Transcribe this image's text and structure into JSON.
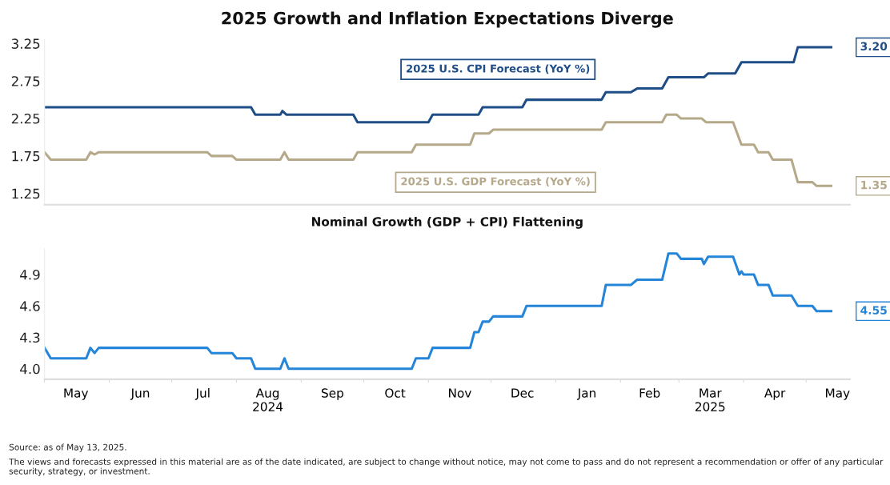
{
  "chart_data": [
    {
      "type": "line",
      "title": "2025 Growth and Inflation Expectations Diverge",
      "xlim": [
        "2024-05-01",
        "2025-05-22"
      ],
      "ylim": [
        1.1,
        3.3
      ],
      "yticks": [
        {
          "value": 1.25,
          "label": "1.25"
        },
        1.75,
        2.25,
        2.75,
        3.25
      ],
      "tick_labels": "y",
      "grid": false,
      "legend": false,
      "line_style": "solid",
      "marker": "none",
      "series": [
        {
          "name": "2025 U.S. CPI Forecast (YoY %)",
          "color": "#1f4e87",
          "x": [
            "2024-05-01",
            "2024-08-08",
            "2024-08-10",
            "2024-08-22",
            "2024-08-23",
            "2024-08-25",
            "2024-09-26",
            "2024-09-28",
            "2024-11-01",
            "2024-11-03",
            "2024-11-25",
            "2024-11-27",
            "2024-12-16",
            "2024-12-18",
            "2025-01-23",
            "2025-01-25",
            "2025-02-06",
            "2025-02-09",
            "2025-02-21",
            "2025-02-24",
            "2025-03-13",
            "2025-03-15",
            "2025-03-28",
            "2025-03-31",
            "2025-04-25",
            "2025-04-27",
            "2025-05-13"
          ],
          "values": [
            2.4,
            2.4,
            2.3,
            2.3,
            2.35,
            2.3,
            2.3,
            2.2,
            2.2,
            2.3,
            2.3,
            2.4,
            2.4,
            2.5,
            2.5,
            2.6,
            2.6,
            2.65,
            2.65,
            2.8,
            2.8,
            2.85,
            2.85,
            3.0,
            3.0,
            3.2,
            3.2
          ]
        },
        {
          "name": "2025 U.S. GDP Forecast (YoY %)",
          "color": "#b5a98a",
          "x": [
            "2024-05-01",
            "2024-05-04",
            "2024-05-21",
            "2024-05-23",
            "2024-05-25",
            "2024-05-27",
            "2024-07-18",
            "2024-07-20",
            "2024-07-30",
            "2024-08-01",
            "2024-08-22",
            "2024-08-24",
            "2024-08-26",
            "2024-09-26",
            "2024-09-28",
            "2024-10-24",
            "2024-10-26",
            "2024-11-21",
            "2024-11-23",
            "2024-11-30",
            "2024-12-02",
            "2025-01-23",
            "2025-01-25",
            "2025-02-21",
            "2025-02-23",
            "2025-02-28",
            "2025-03-02",
            "2025-03-12",
            "2025-03-14",
            "2025-03-27",
            "2025-03-31",
            "2025-04-06",
            "2025-04-08",
            "2025-04-13",
            "2025-04-15",
            "2025-04-24",
            "2025-04-27",
            "2025-05-04",
            "2025-05-06",
            "2025-05-13"
          ],
          "values": [
            1.8,
            1.7,
            1.7,
            1.8,
            1.77,
            1.8,
            1.8,
            1.75,
            1.75,
            1.7,
            1.7,
            1.8,
            1.7,
            1.7,
            1.8,
            1.8,
            1.9,
            1.9,
            2.05,
            2.05,
            2.1,
            2.1,
            2.2,
            2.2,
            2.3,
            2.3,
            2.25,
            2.25,
            2.2,
            2.2,
            1.9,
            1.9,
            1.8,
            1.8,
            1.7,
            1.7,
            1.4,
            1.4,
            1.35,
            1.35
          ]
        }
      ],
      "annotations": [
        {
          "text": "3.20",
          "x": "2025-05-13",
          "y": 3.2
        },
        {
          "text": "1.35",
          "x": "2025-05-13",
          "y": 1.35
        }
      ]
    },
    {
      "type": "line",
      "title": "Nominal Growth (GDP + CPI) Flattening",
      "xlim": [
        "2024-05-01",
        "2025-05-22"
      ],
      "ylim": [
        3.9,
        5.15
      ],
      "yticks": [
        {
          "value": 4.0,
          "label": "4.0"
        },
        4.3,
        4.6,
        4.9
      ],
      "grid": false,
      "legend": false,
      "line_style": "solid",
      "marker": "none",
      "xticks": [
        {
          "value": "2024-05-01",
          "label": null
        },
        {
          "value": "2024-05-16",
          "label": "May"
        },
        {
          "value": "2024-06-01",
          "label": null
        },
        {
          "value": "2024-06-16",
          "label": "Jun"
        },
        {
          "value": "2024-07-01",
          "label": null
        },
        {
          "value": "2024-07-16",
          "label": "Jul"
        },
        {
          "value": "2024-08-01",
          "label": null
        },
        {
          "value": "2024-08-16",
          "label": "Aug\n2024"
        },
        {
          "value": "2024-09-01",
          "label": null
        },
        {
          "value": "2024-09-16",
          "label": "Sep"
        },
        {
          "value": "2024-10-01",
          "label": null
        },
        {
          "value": "2024-10-16",
          "label": "Oct"
        },
        {
          "value": "2024-11-01",
          "label": null
        },
        {
          "value": "2024-11-16",
          "label": "Nov"
        },
        {
          "value": "2024-12-01",
          "label": null
        },
        {
          "value": "2024-12-16",
          "label": "Dec"
        },
        {
          "value": "2025-01-01",
          "label": null
        },
        {
          "value": "2025-01-16",
          "label": "Jan"
        },
        {
          "value": "2025-02-01",
          "label": null
        },
        {
          "value": "2025-02-15",
          "label": "Feb"
        },
        {
          "value": "2025-03-01",
          "label": null
        },
        {
          "value": "2025-03-16",
          "label": "Mar\n2025"
        },
        {
          "value": "2025-04-01",
          "label": null
        },
        {
          "value": "2025-04-16",
          "label": "Apr"
        },
        {
          "value": "2025-05-01",
          "label": null
        },
        {
          "value": "2025-05-16",
          "label": "May"
        }
      ],
      "series": [
        {
          "color": "#2585d9",
          "x": [
            "2024-05-01",
            "2024-05-04",
            "2024-05-21",
            "2024-05-23",
            "2024-05-25",
            "2024-05-27",
            "2024-07-18",
            "2024-07-20",
            "2024-07-30",
            "2024-08-01",
            "2024-08-08",
            "2024-08-10",
            "2024-08-22",
            "2024-08-24",
            "2024-08-26",
            "2024-10-24",
            "2024-10-26",
            "2024-11-01",
            "2024-11-03",
            "2024-11-21",
            "2024-11-23",
            "2024-11-25",
            "2024-11-27",
            "2024-11-30",
            "2024-12-02",
            "2024-12-16",
            "2024-12-18",
            "2025-01-23",
            "2025-01-25",
            "2025-02-06",
            "2025-02-09",
            "2025-02-21",
            "2025-02-24",
            "2025-02-28",
            "2025-03-02",
            "2025-03-12",
            "2025-03-13",
            "2025-03-15",
            "2025-03-27",
            "2025-03-30",
            "2025-03-31",
            "2025-04-01",
            "2025-04-06",
            "2025-04-08",
            "2025-04-13",
            "2025-04-15",
            "2025-04-24",
            "2025-04-27",
            "2025-05-04",
            "2025-05-06",
            "2025-05-13"
          ],
          "values": [
            4.2,
            4.1,
            4.1,
            4.2,
            4.15,
            4.2,
            4.2,
            4.15,
            4.15,
            4.1,
            4.1,
            4.0,
            4.0,
            4.1,
            4.0,
            4.0,
            4.1,
            4.1,
            4.2,
            4.2,
            4.35,
            4.35,
            4.45,
            4.45,
            4.5,
            4.5,
            4.6,
            4.6,
            4.8,
            4.8,
            4.85,
            4.85,
            5.1,
            5.1,
            5.05,
            5.05,
            5.0,
            5.07,
            5.07,
            4.9,
            4.93,
            4.9,
            4.9,
            4.8,
            4.8,
            4.7,
            4.7,
            4.6,
            4.6,
            4.55,
            4.55
          ]
        }
      ],
      "annotations": [
        {
          "text": "4.55",
          "x": "2025-05-13",
          "y": 4.55
        },
        "Source: as of May 13, 2025.",
        "The views and forecasts expressed in this material are as of the date indicated, are subject to change without notice, may not come to pass and do not represent a recommendation or offer of any particular security, strategy, or investment."
      ]
    }
  ]
}
